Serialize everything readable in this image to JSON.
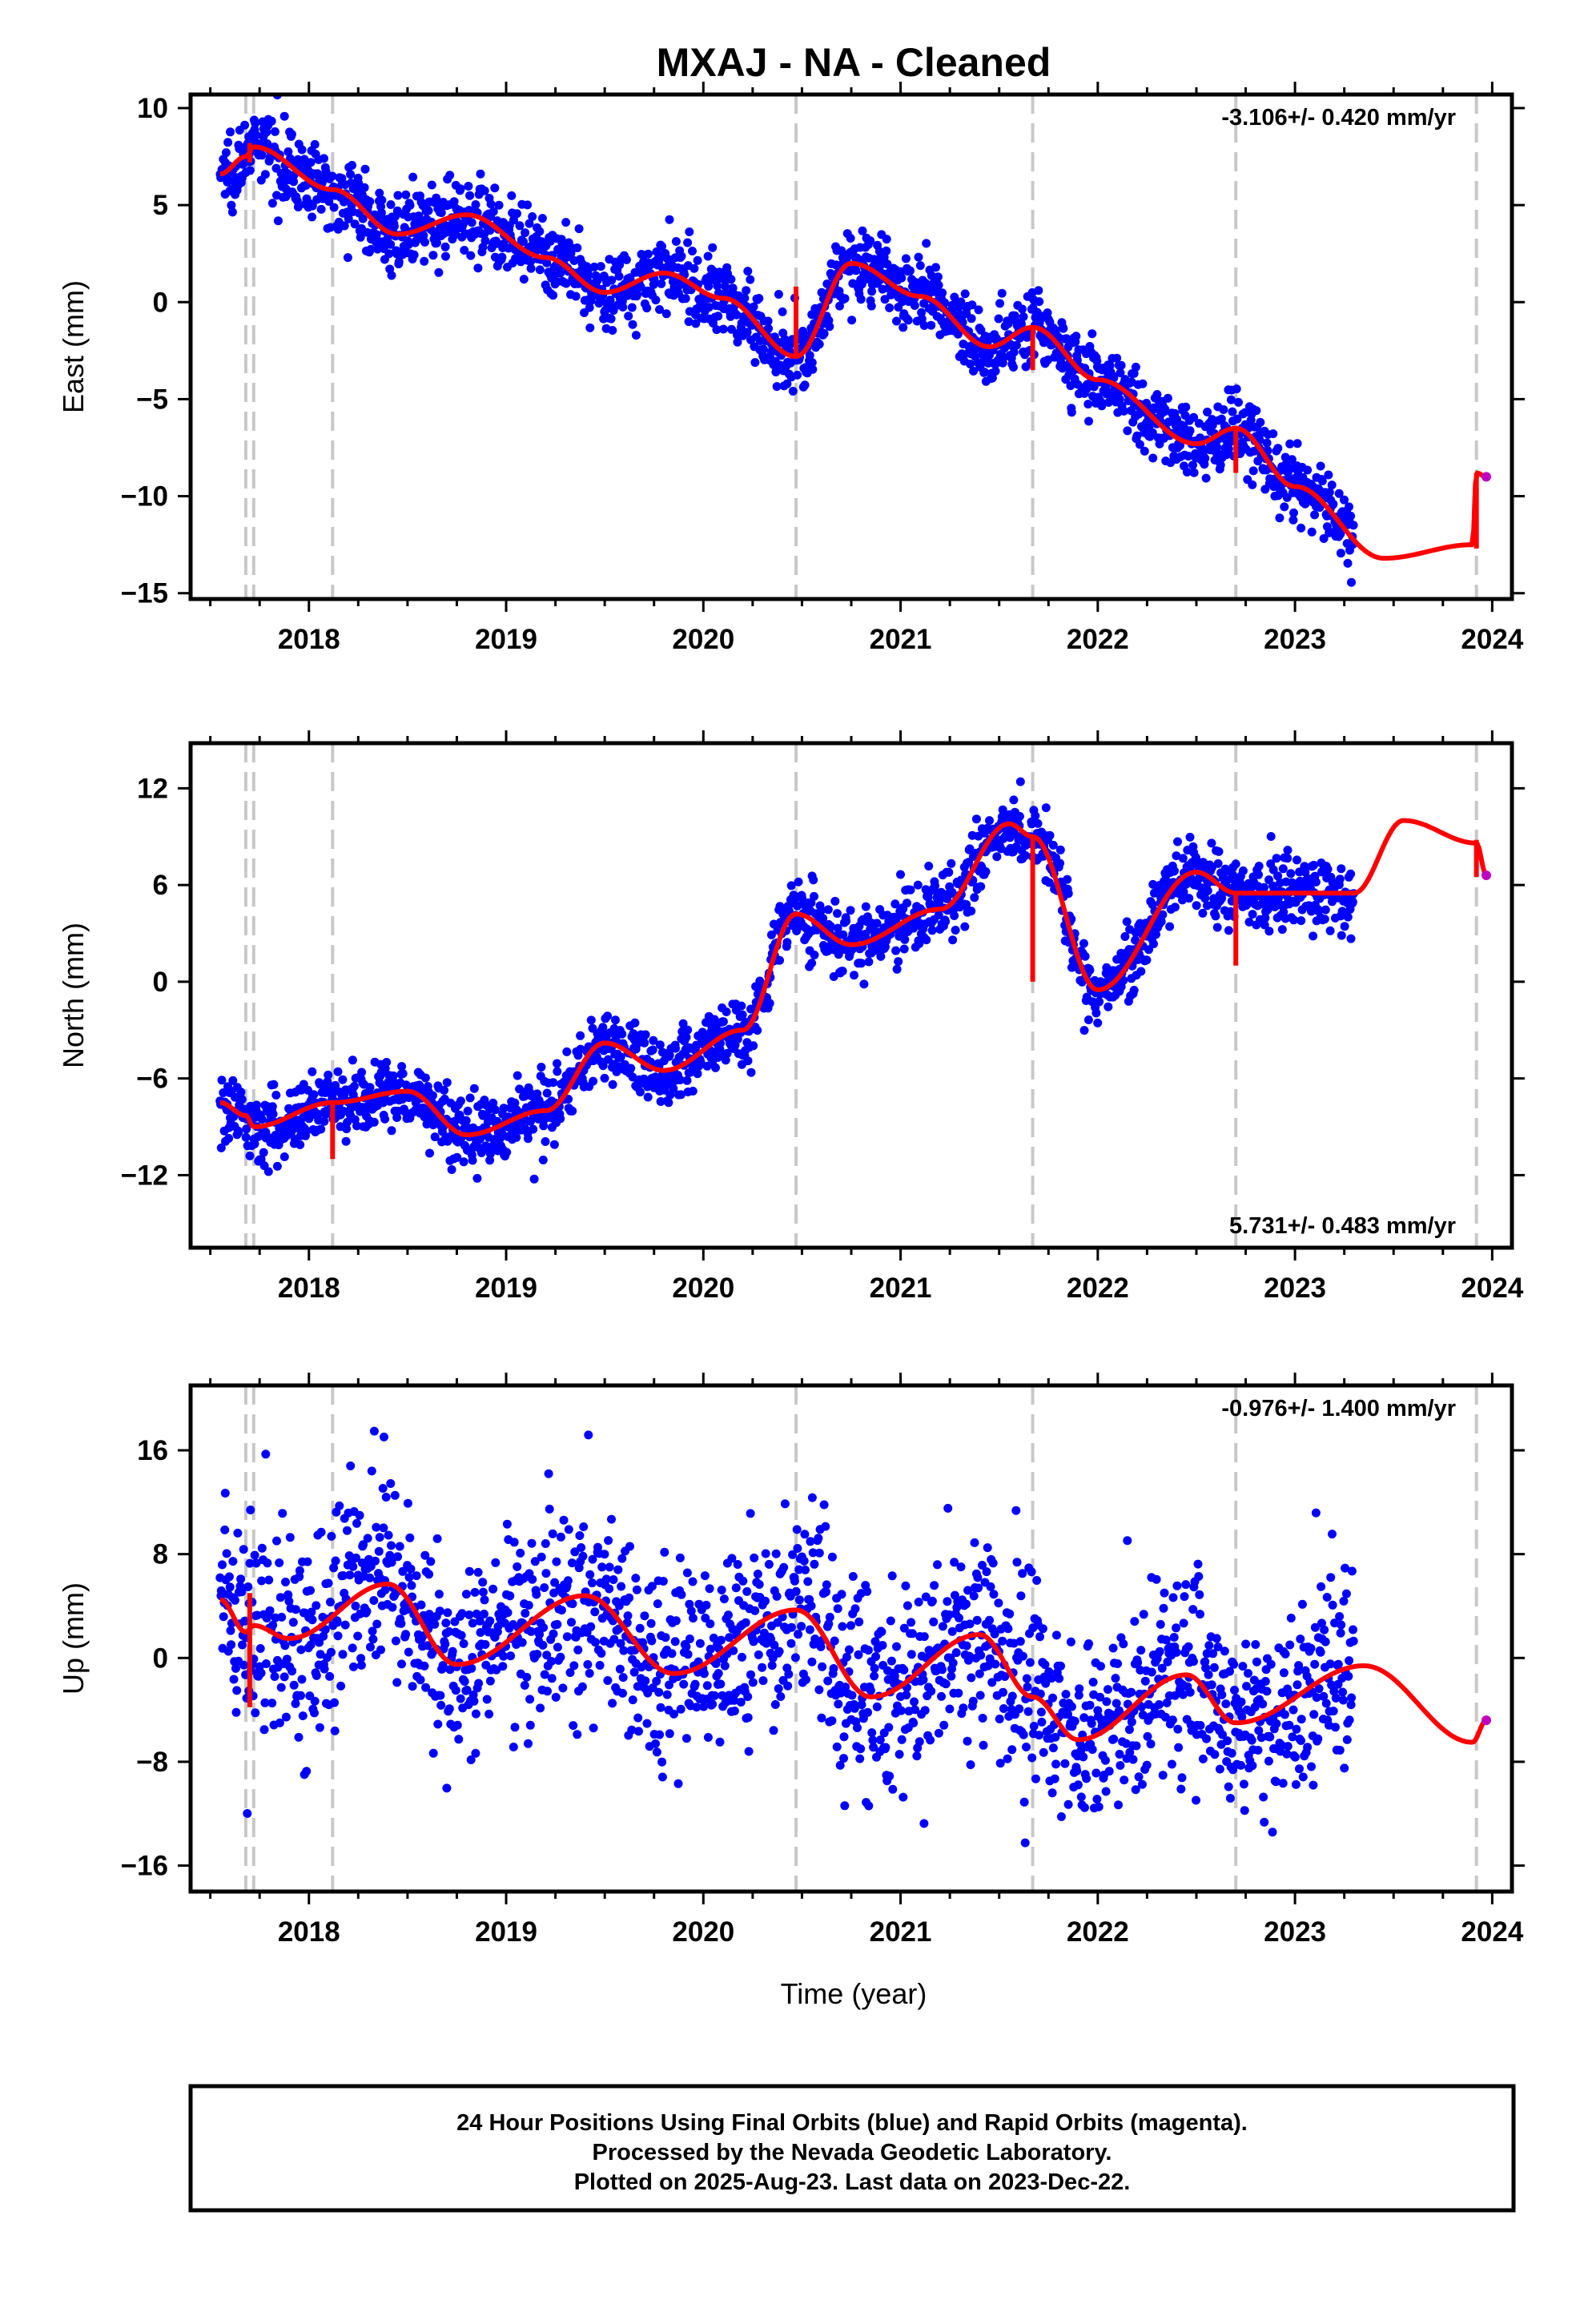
{
  "title": "MXAJ  - NA - Cleaned",
  "xlabel": "Time (year)",
  "footer": [
    "24 Hour Positions Using Final Orbits (blue) and Rapid Orbits (magenta).",
    "Processed by the Nevada Geodetic Laboratory.",
    "Plotted on 2025-Aug-23. Last data on 2023-Dec-22."
  ],
  "colors": {
    "final_orbits": "#0000ff",
    "rapid_orbits": "#c000c0",
    "model": "#ff0000",
    "event_lines": "#c8c8c8"
  },
  "chart_data": [
    {
      "type": "scatter",
      "component": "East",
      "ylabel": "East (mm)",
      "rate": "-3.106+/- 0.420 mm/yr",
      "rate_position": "top-right",
      "xlim": [
        2017.4,
        2024.1
      ],
      "ylim": [
        -15.3,
        10.7
      ],
      "xticks": [
        2018,
        2019,
        2020,
        2021,
        2022,
        2023,
        2024
      ],
      "yticks": [
        -15,
        -10,
        -5,
        0,
        5,
        10
      ],
      "event_lines": [
        2017.68,
        2017.72,
        2018.12,
        2020.47,
        2021.67,
        2022.7,
        2023.92
      ],
      "series": [
        {
          "name": "Final Orbits",
          "source": "daily_positions",
          "x_range": [
            2017.55,
            2023.3
          ],
          "point_count": 1900
        },
        {
          "name": "Rapid Orbits",
          "x": [
            2023.97
          ],
          "y": [
            -9.0
          ]
        },
        {
          "name": "Model",
          "x": [
            2017.55,
            2017.68,
            2017.72,
            2018.12,
            2018.45,
            2018.8,
            2019.2,
            2019.5,
            2019.8,
            2020.1,
            2020.47,
            2020.75,
            2021.1,
            2021.45,
            2021.67,
            2022.0,
            2022.5,
            2022.7,
            2023.0,
            2023.45,
            2023.9,
            2023.92,
            2023.97
          ],
          "y": [
            6.6,
            7.5,
            8.0,
            5.8,
            3.5,
            4.5,
            2.3,
            0.5,
            1.5,
            0.2,
            -2.8,
            2.0,
            0.3,
            -2.3,
            -1.3,
            -4.0,
            -7.3,
            -6.5,
            -9.5,
            -13.2,
            -12.5,
            -8.8,
            -9.0
          ],
          "jumps": [
            {
              "x": 2017.7,
              "from": 7.2,
              "to": 8.2
            },
            {
              "x": 2020.47,
              "from": -2.8,
              "to": 0.8
            },
            {
              "x": 2021.67,
              "from": -1.3,
              "to": -3.5
            },
            {
              "x": 2022.7,
              "from": -6.5,
              "to": -8.8
            },
            {
              "x": 2023.92,
              "from": -12.7,
              "to": -8.8
            }
          ]
        }
      ]
    },
    {
      "type": "scatter",
      "component": "North",
      "ylabel": "North (mm)",
      "rate": "5.731+/- 0.483 mm/yr",
      "rate_position": "bottom-right",
      "xlim": [
        2017.4,
        2024.1
      ],
      "ylim": [
        -16.5,
        14.8
      ],
      "xticks": [
        2018,
        2019,
        2020,
        2021,
        2022,
        2023,
        2024
      ],
      "yticks": [
        -12,
        -6,
        0,
        6,
        12
      ],
      "event_lines": [
        2017.68,
        2017.72,
        2018.12,
        2020.47,
        2021.67,
        2022.7,
        2023.92
      ],
      "series": [
        {
          "name": "Final Orbits",
          "source": "daily_positions",
          "x_range": [
            2017.55,
            2023.3
          ],
          "point_count": 1900
        },
        {
          "name": "Rapid Orbits",
          "x": [
            2023.97
          ],
          "y": [
            6.6
          ]
        },
        {
          "name": "Model",
          "x": [
            2017.55,
            2017.68,
            2017.72,
            2018.12,
            2018.5,
            2018.8,
            2019.2,
            2019.5,
            2019.8,
            2020.2,
            2020.47,
            2020.75,
            2021.2,
            2021.55,
            2021.67,
            2022.0,
            2022.5,
            2022.7,
            2023.3,
            2023.55,
            2023.92,
            2023.97
          ],
          "y": [
            -7.5,
            -8.3,
            -9.0,
            -7.5,
            -6.8,
            -9.5,
            -8.0,
            -3.8,
            -5.5,
            -3.0,
            4.2,
            2.3,
            4.5,
            9.8,
            9.0,
            -0.5,
            6.8,
            5.5,
            5.5,
            10.0,
            8.6,
            6.6
          ],
          "jumps": [
            {
              "x": 2018.12,
              "from": -7.5,
              "to": -11.0
            },
            {
              "x": 2021.67,
              "from": 9.0,
              "to": 0.0
            },
            {
              "x": 2022.7,
              "from": 5.5,
              "to": 1.0
            },
            {
              "x": 2023.92,
              "from": 8.8,
              "to": 6.5
            }
          ]
        }
      ]
    },
    {
      "type": "scatter",
      "component": "Up",
      "ylabel": "Up (mm)",
      "rate": "-0.976+/- 1.400 mm/yr",
      "rate_position": "top-right",
      "xlim": [
        2017.4,
        2024.1
      ],
      "ylim": [
        -18,
        21
      ],
      "xticks": [
        2018,
        2019,
        2020,
        2021,
        2022,
        2023,
        2024
      ],
      "yticks": [
        -16,
        -8,
        0,
        8,
        16
      ],
      "event_lines": [
        2017.68,
        2017.72,
        2018.12,
        2020.47,
        2021.67,
        2022.7,
        2023.92
      ],
      "series": [
        {
          "name": "Final Orbits",
          "source": "daily_positions",
          "x_range": [
            2017.55,
            2023.3
          ],
          "point_count": 1750
        },
        {
          "name": "Rapid Orbits",
          "x": [
            2023.97
          ],
          "y": [
            -4.8
          ]
        },
        {
          "name": "Model",
          "x": [
            2017.55,
            2017.68,
            2017.72,
            2017.9,
            2018.4,
            2018.75,
            2019.4,
            2019.85,
            2020.47,
            2020.85,
            2021.4,
            2021.67,
            2021.9,
            2022.45,
            2022.7,
            2023.35,
            2023.9,
            2023.97
          ],
          "y": [
            4.5,
            2.0,
            2.5,
            1.5,
            5.7,
            -0.5,
            4.8,
            -1.2,
            3.7,
            -3.0,
            1.8,
            -3.0,
            -6.3,
            -1.3,
            -5.0,
            -0.6,
            -6.5,
            -4.8
          ],
          "jumps": [
            {
              "x": 2017.7,
              "from": -3.8,
              "to": 5.0
            }
          ]
        }
      ]
    }
  ]
}
